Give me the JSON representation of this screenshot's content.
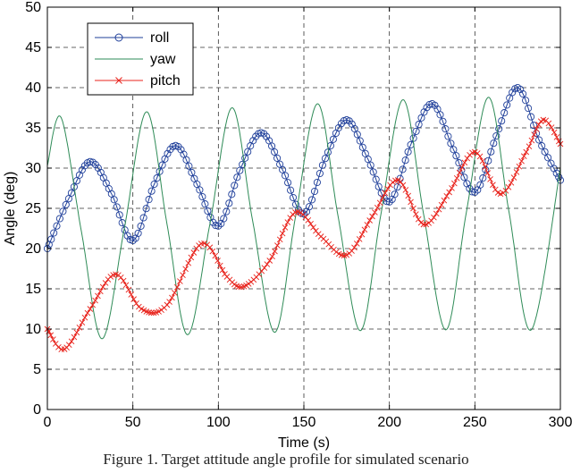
{
  "caption": "Figure 1. Target attitude angle profile for simulated scenario",
  "chart_data": {
    "type": "line",
    "xlabel": "Time (s)",
    "ylabel": "Angle (deg)",
    "xlim": [
      0,
      300
    ],
    "ylim": [
      0,
      50
    ],
    "xticks": [
      0,
      50,
      100,
      150,
      200,
      250,
      300
    ],
    "yticks": [
      0,
      5,
      10,
      15,
      20,
      25,
      30,
      35,
      40,
      45,
      50
    ],
    "grid": true,
    "legend_position": "top-left",
    "series": [
      {
        "name": "roll",
        "color": "#1f3f9a",
        "marker": "circle",
        "x": [
          0,
          12.5,
          25,
          37.5,
          50,
          62.5,
          75,
          87.5,
          100,
          112.5,
          125,
          137.5,
          150,
          162.5,
          175,
          187.5,
          200,
          212.5,
          225,
          237.5,
          250,
          262.5,
          275,
          287.5,
          300
        ],
        "y": [
          20,
          26.2,
          30.8,
          26.8,
          21,
          28.0,
          32.8,
          28.0,
          22.8,
          29.7,
          34.4,
          29.8,
          24.3,
          31.2,
          36.0,
          31.1,
          25.8,
          32.9,
          38.0,
          32.3,
          27,
          34.0,
          40.0,
          33.5,
          28.5
        ]
      },
      {
        "name": "yaw",
        "color": "#2e8b57",
        "marker": "none",
        "x": [
          0,
          8,
          20,
          32,
          45,
          58,
          70,
          82,
          95,
          108,
          120,
          133,
          145,
          158,
          170,
          183,
          195,
          208,
          220,
          233,
          245,
          258,
          270,
          283,
          300
        ],
        "y": [
          30.3,
          36.3,
          22.0,
          8.8,
          22.5,
          37.0,
          23.0,
          9.3,
          23.0,
          37.5,
          23.5,
          9.6,
          23.8,
          38.0,
          24.0,
          9.8,
          24.2,
          38.5,
          24.3,
          9.9,
          24.5,
          38.8,
          24.5,
          9.9,
          30.0
        ]
      },
      {
        "name": "pitch",
        "color": "#e8231c",
        "marker": "x",
        "x": [
          0,
          10,
          25,
          40,
          55,
          70,
          90,
          105,
          115,
          130,
          145,
          160,
          175,
          190,
          205,
          220,
          235,
          250,
          265,
          280,
          290,
          300
        ],
        "y": [
          10.0,
          7.5,
          12.5,
          16.8,
          12.5,
          13.0,
          20.6,
          16.5,
          15.3,
          18.5,
          24.5,
          21.5,
          19.2,
          24.0,
          28.5,
          23.0,
          27.0,
          32.0,
          26.8,
          32.0,
          36.0,
          33.0
        ]
      }
    ]
  }
}
